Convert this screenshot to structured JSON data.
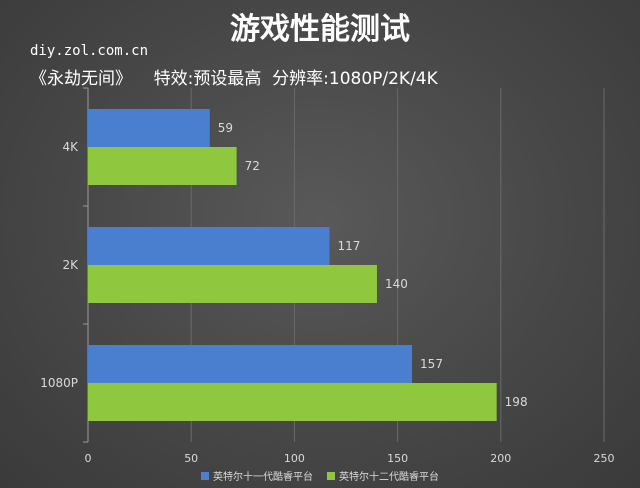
{
  "header": {
    "title": "游戏性能测试",
    "watermark": "diy.zol.com.cn",
    "subtitle": "《永劫无间》    特效:预设最高  分辨率:1080P/2K/4K"
  },
  "chart_data": {
    "type": "bar",
    "orientation": "horizontal",
    "title": "游戏性能测试",
    "categories": [
      "4K",
      "2K",
      "1080P"
    ],
    "series": [
      {
        "name": "英特尔十一代酷睿平台",
        "values": [
          59,
          117,
          157
        ],
        "color": "#4a7fd0"
      },
      {
        "name": "英特尔十二代酷睿平台",
        "values": [
          72,
          140,
          198
        ],
        "color": "#8fc73e"
      }
    ],
    "xlim": [
      0,
      250
    ],
    "xticks": [
      0,
      50,
      100,
      150,
      200,
      250
    ],
    "grid": true,
    "legend_position": "bottom",
    "data_labels": true
  }
}
